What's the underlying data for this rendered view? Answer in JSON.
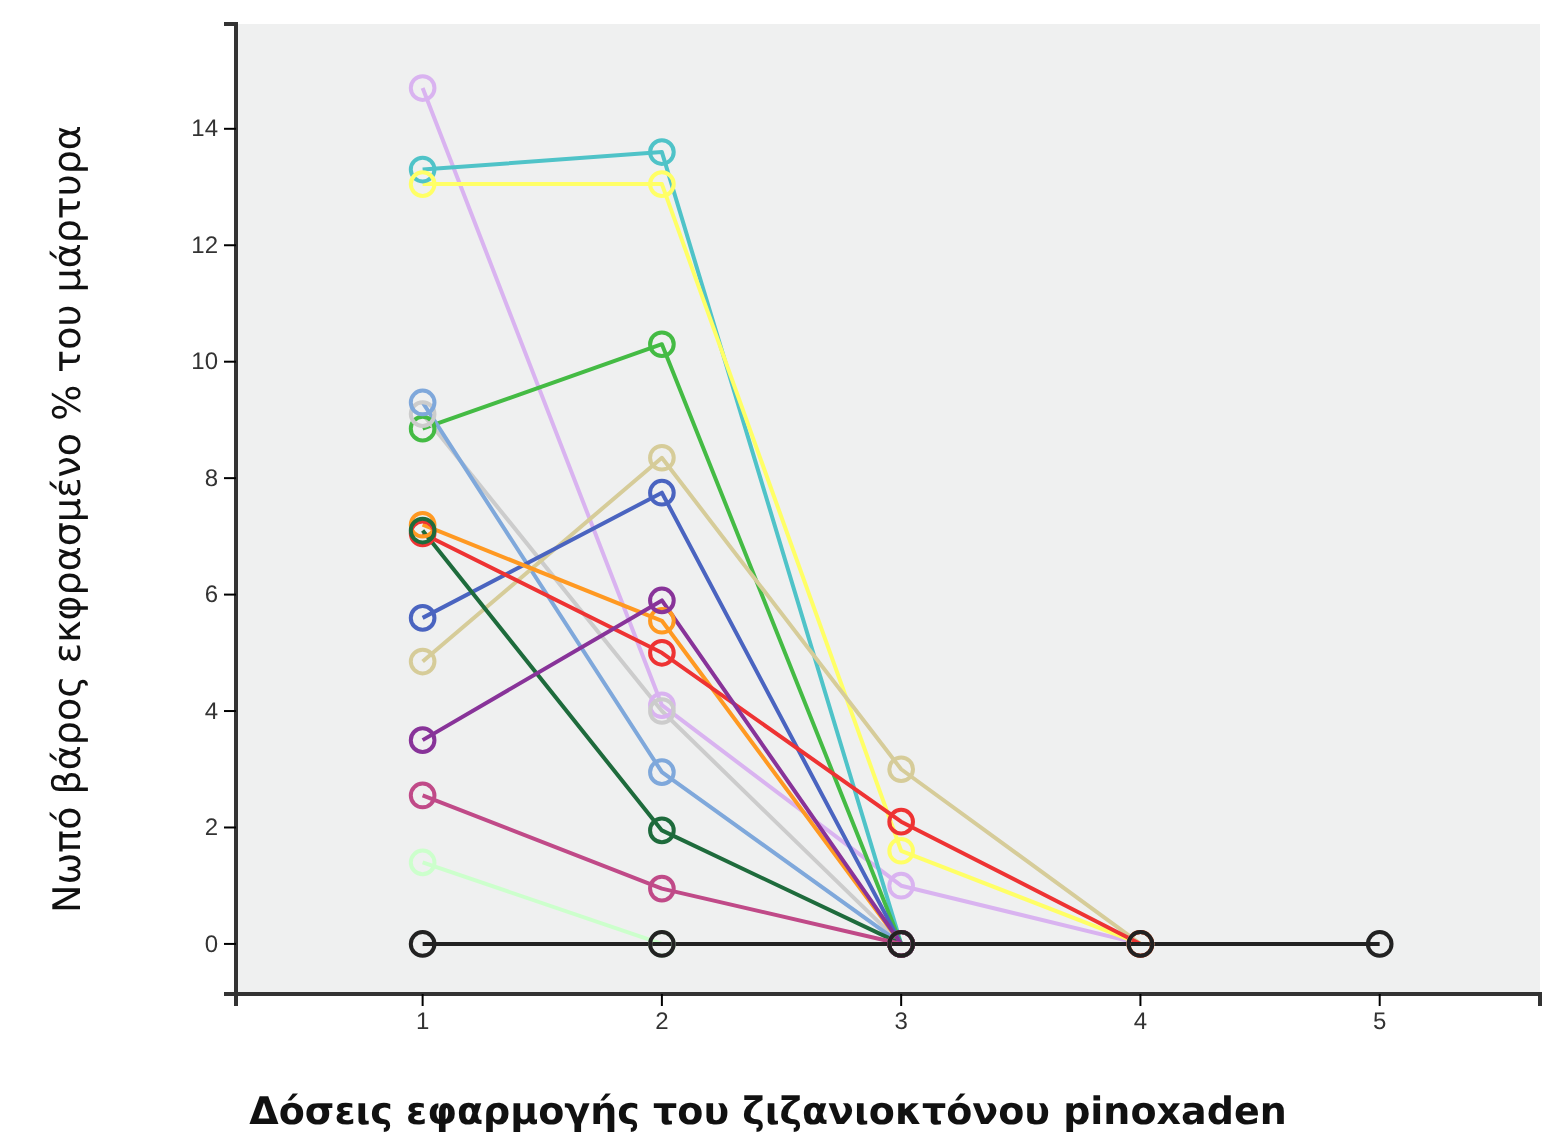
{
  "chart_data": {
    "type": "line",
    "xlabel": "Δόσεις εφαρμογής του ζιζανιοκτόνου pinoxaden",
    "ylabel": "Νωπό βάρος εκφρασμένο % του μάρτυρα",
    "x": [
      1,
      2,
      3,
      4,
      5
    ],
    "xlim": [
      0.22,
      5.67
    ],
    "xticks": [
      1,
      2,
      3,
      4,
      5
    ],
    "ylim": [
      -0.86,
      15.8
    ],
    "yticks": [
      0,
      2,
      4,
      6,
      8,
      10,
      12,
      14
    ],
    "marker": "circle",
    "grid": false,
    "series": [
      {
        "color": "#d9b3f0",
        "values": [
          14.7,
          4.1,
          1.0,
          0,
          null
        ]
      },
      {
        "color": "#4fc3c8",
        "values": [
          13.3,
          13.6,
          0,
          null,
          null
        ]
      },
      {
        "color": "#ffff66",
        "values": [
          13.05,
          13.05,
          1.6,
          0,
          null
        ]
      },
      {
        "color": "#44bb44",
        "values": [
          8.85,
          10.3,
          0,
          null,
          null
        ]
      },
      {
        "color": "#cccccc",
        "values": [
          9.1,
          4.0,
          0,
          null,
          null
        ]
      },
      {
        "color": "#7fa8db",
        "values": [
          9.3,
          2.95,
          0,
          null,
          null
        ]
      },
      {
        "color": "#d6cc99",
        "values": [
          4.85,
          8.35,
          3.0,
          0,
          null
        ]
      },
      {
        "color": "#4a64c0",
        "values": [
          5.6,
          7.75,
          0,
          null,
          null
        ]
      },
      {
        "color": "#ff9922",
        "values": [
          7.2,
          5.55,
          0,
          null,
          null
        ]
      },
      {
        "color": "#ee3333",
        "values": [
          7.05,
          5.0,
          2.1,
          0,
          null
        ]
      },
      {
        "color": "#1e6b3c",
        "values": [
          7.1,
          1.95,
          0,
          null,
          null
        ]
      },
      {
        "color": "#883399",
        "values": [
          3.5,
          5.9,
          0,
          null,
          null
        ]
      },
      {
        "color": "#c04a88",
        "values": [
          2.55,
          0.95,
          0,
          null,
          null
        ]
      },
      {
        "color": "#ccffcc",
        "values": [
          1.4,
          0,
          null,
          null,
          null
        ]
      },
      {
        "color": "#222222",
        "values": [
          0,
          0,
          0,
          0,
          0
        ]
      }
    ]
  }
}
